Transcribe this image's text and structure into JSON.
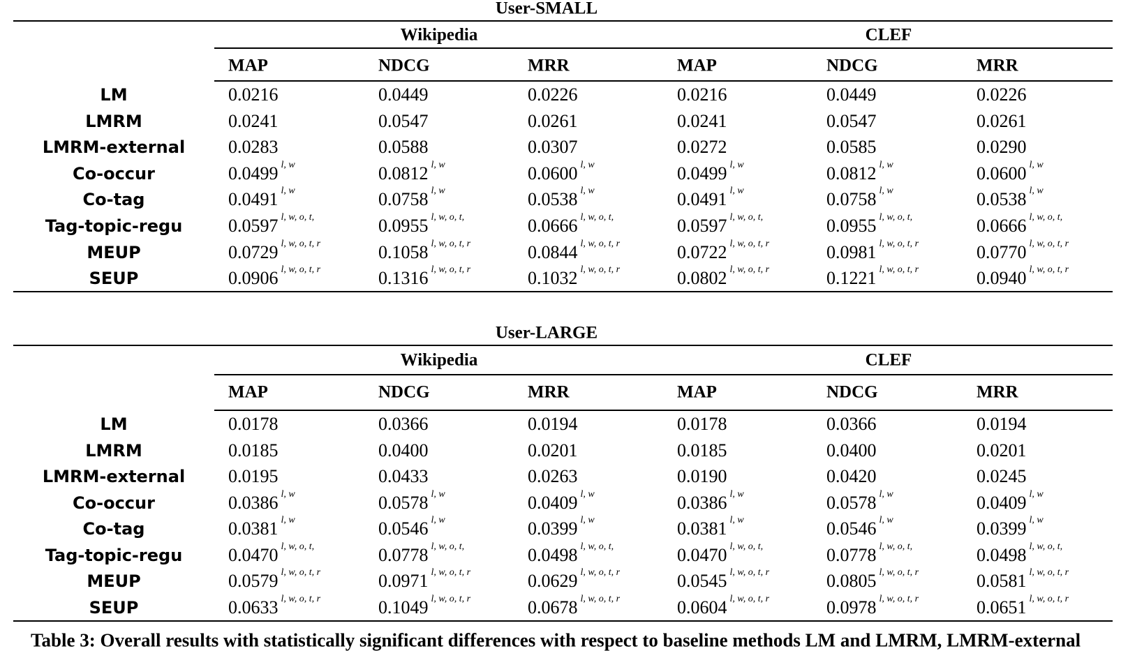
{
  "tables": [
    {
      "title": "User-SMALL",
      "groups": [
        "Wikipedia",
        "CLEF"
      ],
      "metrics": [
        "MAP",
        "NDCG",
        "MRR",
        "MAP",
        "NDCG",
        "MRR"
      ],
      "rows": [
        {
          "name": "LM",
          "cells": [
            {
              "value": "0.0216"
            },
            {
              "value": "0.0449"
            },
            {
              "value": "0.0226"
            },
            {
              "value": "0.0216"
            },
            {
              "value": "0.0449"
            },
            {
              "value": "0.0226"
            }
          ]
        },
        {
          "name": "LMRM",
          "cells": [
            {
              "value": "0.0241"
            },
            {
              "value": "0.0547"
            },
            {
              "value": "0.0261"
            },
            {
              "value": "0.0241"
            },
            {
              "value": "0.0547"
            },
            {
              "value": "0.0261"
            }
          ]
        },
        {
          "name": "LMRM-external",
          "cells": [
            {
              "value": "0.0283"
            },
            {
              "value": "0.0588"
            },
            {
              "value": "0.0307"
            },
            {
              "value": "0.0272"
            },
            {
              "value": "0.0585"
            },
            {
              "value": "0.0290"
            }
          ]
        },
        {
          "name": "Co-occur",
          "cells": [
            {
              "value": "0.0499",
              "sup": "l, w"
            },
            {
              "value": "0.0812",
              "sup": "l, w"
            },
            {
              "value": "0.0600",
              "sup": "l, w"
            },
            {
              "value": "0.0499",
              "sup": "l, w"
            },
            {
              "value": "0.0812",
              "sup": "l, w"
            },
            {
              "value": "0.0600",
              "sup": "l, w"
            }
          ]
        },
        {
          "name": "Co-tag",
          "cells": [
            {
              "value": "0.0491",
              "sup": "l, w"
            },
            {
              "value": "0.0758",
              "sup": "l, w"
            },
            {
              "value": "0.0538",
              "sup": "l, w"
            },
            {
              "value": "0.0491",
              "sup": "l, w"
            },
            {
              "value": "0.0758",
              "sup": "l, w"
            },
            {
              "value": "0.0538",
              "sup": "l, w"
            }
          ]
        },
        {
          "name": "Tag-topic-regu",
          "cells": [
            {
              "value": "0.0597",
              "sup": "l, w, o, t,"
            },
            {
              "value": "0.0955",
              "sup": "l, w, o, t,"
            },
            {
              "value": "0.0666",
              "sup": "l, w, o, t,"
            },
            {
              "value": "0.0597",
              "sup": "l, w, o, t,"
            },
            {
              "value": "0.0955",
              "sup": "l, w, o, t,"
            },
            {
              "value": "0.0666",
              "sup": "l, w, o, t,"
            }
          ]
        },
        {
          "name": "MEUP",
          "cells": [
            {
              "value": "0.0729",
              "sup": "l, w, o, t, r"
            },
            {
              "value": "0.1058",
              "sup": "l, w, o, t, r"
            },
            {
              "value": "0.0844",
              "sup": "l, w, o, t, r"
            },
            {
              "value": "0.0722",
              "sup": "l, w, o, t, r"
            },
            {
              "value": "0.0981",
              "sup": "l, w, o, t, r"
            },
            {
              "value": "0.0770",
              "sup": "l, w, o, t, r"
            }
          ]
        },
        {
          "name": "SEUP",
          "cells": [
            {
              "value": "0.0906",
              "sup": "l, w, o, t, r"
            },
            {
              "value": "0.1316",
              "sup": "l, w, o, t, r"
            },
            {
              "value": "0.1032",
              "sup": "l, w, o, t, r"
            },
            {
              "value": "0.0802",
              "sup": "l, w, o, t, r"
            },
            {
              "value": "0.1221",
              "sup": "l, w, o, t, r"
            },
            {
              "value": "0.0940",
              "sup": "l, w, o, t, r"
            }
          ]
        }
      ]
    },
    {
      "title": "User-LARGE",
      "groups": [
        "Wikipedia",
        "CLEF"
      ],
      "metrics": [
        "MAP",
        "NDCG",
        "MRR",
        "MAP",
        "NDCG",
        "MRR"
      ],
      "rows": [
        {
          "name": "LM",
          "cells": [
            {
              "value": "0.0178"
            },
            {
              "value": "0.0366"
            },
            {
              "value": "0.0194"
            },
            {
              "value": "0.0178"
            },
            {
              "value": "0.0366"
            },
            {
              "value": "0.0194"
            }
          ]
        },
        {
          "name": "LMRM",
          "cells": [
            {
              "value": "0.0185"
            },
            {
              "value": "0.0400"
            },
            {
              "value": "0.0201"
            },
            {
              "value": "0.0185"
            },
            {
              "value": "0.0400"
            },
            {
              "value": "0.0201"
            }
          ]
        },
        {
          "name": "LMRM-external",
          "cells": [
            {
              "value": "0.0195"
            },
            {
              "value": "0.0433"
            },
            {
              "value": "0.0263"
            },
            {
              "value": "0.0190"
            },
            {
              "value": "0.0420"
            },
            {
              "value": "0.0245"
            }
          ]
        },
        {
          "name": "Co-occur",
          "cells": [
            {
              "value": "0.0386",
              "sup": "l, w"
            },
            {
              "value": "0.0578",
              "sup": "l, w"
            },
            {
              "value": "0.0409",
              "sup": "l, w"
            },
            {
              "value": "0.0386",
              "sup": "l, w"
            },
            {
              "value": "0.0578",
              "sup": "l, w"
            },
            {
              "value": "0.0409",
              "sup": "l, w"
            }
          ]
        },
        {
          "name": "Co-tag",
          "cells": [
            {
              "value": "0.0381",
              "sup": "l, w"
            },
            {
              "value": "0.0546",
              "sup": "l, w"
            },
            {
              "value": "0.0399",
              "sup": "l, w"
            },
            {
              "value": "0.0381",
              "sup": "l, w"
            },
            {
              "value": "0.0546",
              "sup": "l, w"
            },
            {
              "value": "0.0399",
              "sup": "l, w"
            }
          ]
        },
        {
          "name": "Tag-topic-regu",
          "cells": [
            {
              "value": "0.0470",
              "sup": "l, w, o, t,"
            },
            {
              "value": "0.0778",
              "sup": "l, w, o, t,"
            },
            {
              "value": "0.0498",
              "sup": "l, w, o, t,"
            },
            {
              "value": "0.0470",
              "sup": "l, w, o, t,"
            },
            {
              "value": "0.0778",
              "sup": "l, w, o, t,"
            },
            {
              "value": "0.0498",
              "sup": "l, w, o, t,"
            }
          ]
        },
        {
          "name": "MEUP",
          "cells": [
            {
              "value": "0.0579",
              "sup": "l, w, o, t, r"
            },
            {
              "value": "0.0971",
              "sup": "l, w, o, t, r"
            },
            {
              "value": "0.0629",
              "sup": "l, w, o, t, r"
            },
            {
              "value": "0.0545",
              "sup": "l, w, o, t, r"
            },
            {
              "value": "0.0805",
              "sup": "l, w, o, t, r"
            },
            {
              "value": "0.0581",
              "sup": "l, w, o, t, r"
            }
          ]
        },
        {
          "name": "SEUP",
          "cells": [
            {
              "value": "0.0633",
              "sup": "l, w, o, t, r"
            },
            {
              "value": "0.1049",
              "sup": "l, w, o, t, r"
            },
            {
              "value": "0.0678",
              "sup": "l, w, o, t, r"
            },
            {
              "value": "0.0604",
              "sup": "l, w, o, t, r"
            },
            {
              "value": "0.0978",
              "sup": "l, w, o, t, r"
            },
            {
              "value": "0.0651",
              "sup": "l, w, o, t, r"
            }
          ]
        }
      ]
    }
  ],
  "caption": "Table 3: Overall results with statistically significant differences with respect to baseline methods LM and LMRM, LMRM-external"
}
